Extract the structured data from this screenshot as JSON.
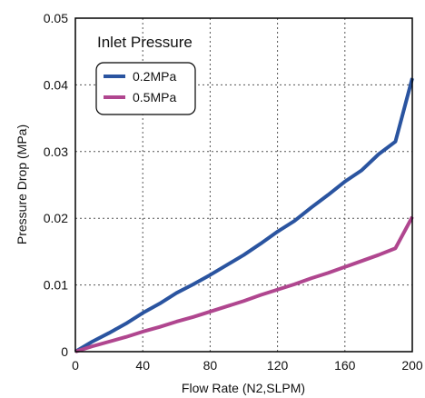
{
  "chart_data": {
    "type": "line",
    "title": "",
    "xlabel": "Flow Rate (N2,SLPM)",
    "ylabel": "Pressure Drop (MPa)",
    "xlim": [
      0,
      200
    ],
    "ylim": [
      0,
      0.05
    ],
    "x_ticks": [
      "0",
      "40",
      "80",
      "120",
      "160",
      "200"
    ],
    "y_ticks": [
      "0",
      "0.01",
      "0.02",
      "0.03",
      "0.04",
      "0.05"
    ],
    "grid": "dotted",
    "legend_title": "Inlet Pressure",
    "legend_position": "top-left",
    "series": [
      {
        "name": "0.2MPa",
        "color": "#2a54a0",
        "x": [
          0,
          10,
          20,
          30,
          40,
          50,
          60,
          70,
          80,
          90,
          100,
          110,
          120,
          130,
          140,
          150,
          160,
          170,
          180,
          190,
          200
        ],
        "y": [
          0,
          0.0015,
          0.0028,
          0.0042,
          0.0058,
          0.0072,
          0.0088,
          0.0101,
          0.0115,
          0.013,
          0.0145,
          0.0162,
          0.018,
          0.0196,
          0.0216,
          0.0235,
          0.0255,
          0.0272,
          0.0296,
          0.0315,
          0.041
        ]
      },
      {
        "name": "0.5MPa",
        "color": "#b0468f",
        "x": [
          0,
          10,
          20,
          30,
          40,
          50,
          60,
          70,
          80,
          90,
          100,
          110,
          120,
          130,
          140,
          150,
          160,
          170,
          180,
          190,
          200
        ],
        "y": [
          0,
          0.0008,
          0.0015,
          0.0022,
          0.003,
          0.0037,
          0.0045,
          0.0052,
          0.006,
          0.0068,
          0.0076,
          0.0085,
          0.0093,
          0.0101,
          0.011,
          0.0118,
          0.0127,
          0.0136,
          0.0145,
          0.0155,
          0.0202
        ]
      }
    ]
  }
}
